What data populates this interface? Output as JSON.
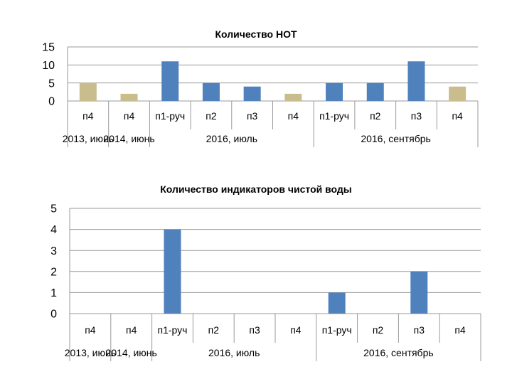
{
  "chart_data": [
    {
      "type": "bar",
      "title": "Количество НОТ",
      "categories": [
        "п4",
        "п4",
        "п1-руч",
        "п2",
        "п3",
        "п4",
        "п1-руч",
        "п2",
        "п3",
        "п4"
      ],
      "groups": [
        {
          "label": "2013, июнь",
          "start": 0,
          "end": 0
        },
        {
          "label": "2014, июнь",
          "start": 1,
          "end": 1
        },
        {
          "label": "2016,  июль",
          "start": 2,
          "end": 5
        },
        {
          "label": "2016, сентябрь",
          "start": 6,
          "end": 9
        }
      ],
      "values": [
        5,
        2,
        11,
        5,
        4,
        2,
        5,
        5,
        11,
        4
      ],
      "bar_colors": [
        "#c9bd8e",
        "#c9bd8e",
        "#4f81bd",
        "#4f81bd",
        "#4f81bd",
        "#c9bd8e",
        "#4f81bd",
        "#4f81bd",
        "#4f81bd",
        "#c9bd8e"
      ],
      "yticks": [
        0,
        5,
        10,
        15
      ],
      "ylim": [
        0,
        15
      ],
      "grid": true
    },
    {
      "type": "bar",
      "title": "Количество индикаторов чистой воды",
      "categories": [
        "п4",
        "п4",
        "п1-руч",
        "п2",
        "п3",
        "п4",
        "п1-руч",
        "п2",
        "п3",
        "п4"
      ],
      "groups": [
        {
          "label": "2013, июнь",
          "start": 0,
          "end": 0
        },
        {
          "label": "2014, июнь",
          "start": 1,
          "end": 1
        },
        {
          "label": "2016,  июль",
          "start": 2,
          "end": 5
        },
        {
          "label": "2016, сентябрь",
          "start": 6,
          "end": 9
        }
      ],
      "values": [
        0,
        0,
        4,
        0,
        0,
        0,
        1,
        0,
        2,
        0
      ],
      "bar_colors": [
        "#4f81bd",
        "#4f81bd",
        "#4f81bd",
        "#4f81bd",
        "#4f81bd",
        "#4f81bd",
        "#4f81bd",
        "#4f81bd",
        "#4f81bd",
        "#4f81bd"
      ],
      "yticks": [
        0,
        1,
        2,
        3,
        4,
        5
      ],
      "ylim": [
        0,
        5
      ],
      "grid": true
    }
  ]
}
